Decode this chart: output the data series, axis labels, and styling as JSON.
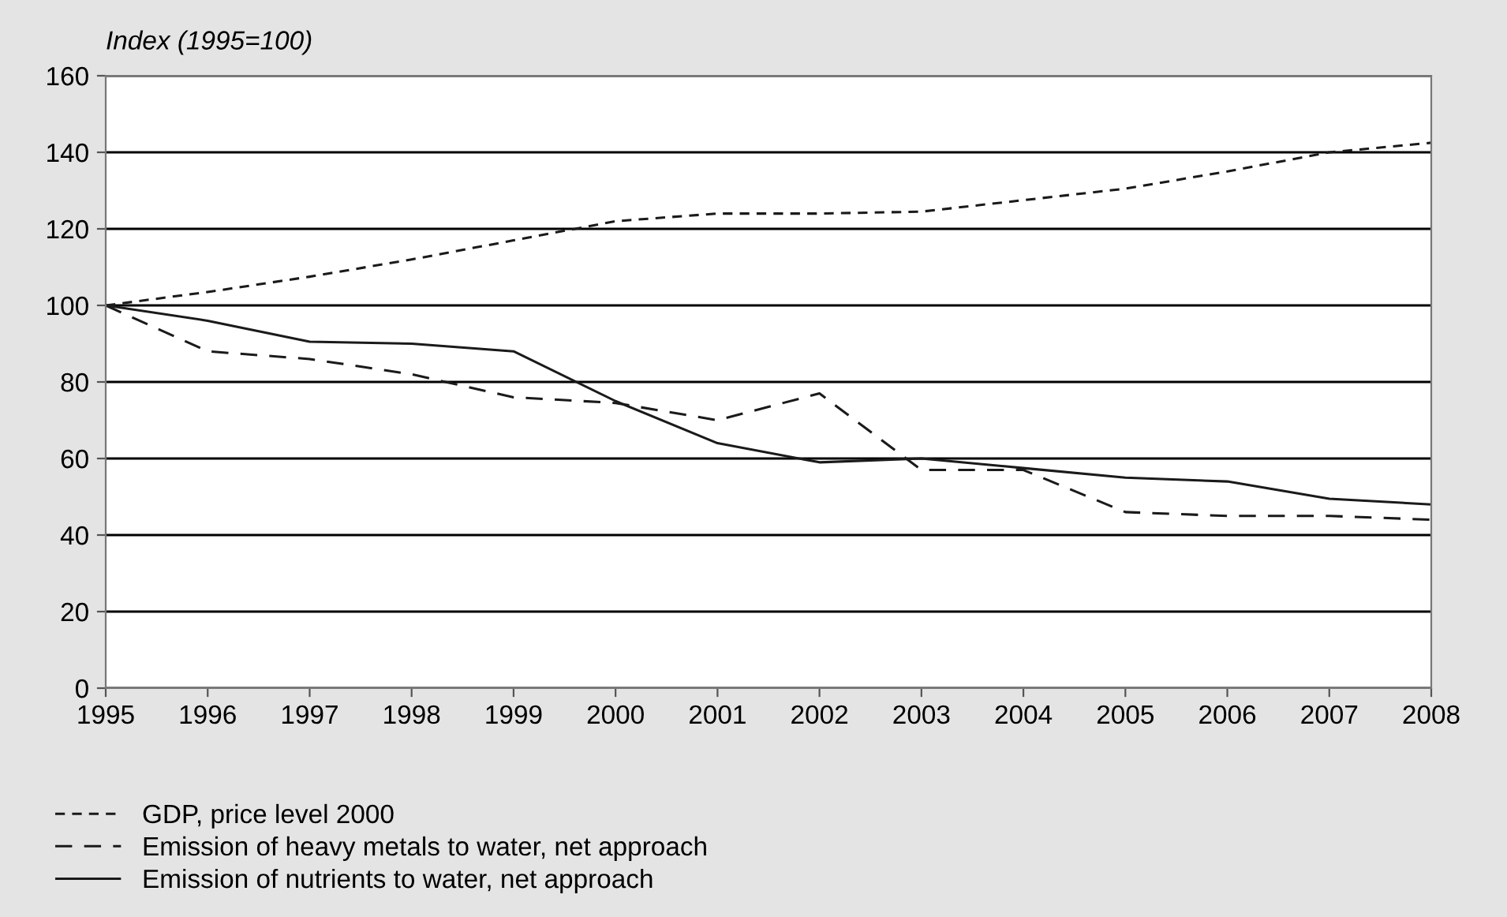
{
  "chart_data": {
    "type": "line",
    "ylabel": "Index (1995=100)",
    "x": [
      1995,
      1996,
      1997,
      1998,
      1999,
      2000,
      2001,
      2002,
      2003,
      2004,
      2005,
      2006,
      2007,
      2008
    ],
    "xlim": [
      1995,
      2008
    ],
    "xticks": [
      1995,
      1996,
      1997,
      1998,
      1999,
      2000,
      2001,
      2002,
      2003,
      2004,
      2005,
      2006,
      2007,
      2008
    ],
    "ylim": [
      0,
      160
    ],
    "yticks": [
      0,
      20,
      40,
      60,
      80,
      100,
      120,
      140,
      160
    ],
    "grid": "y",
    "legend": "bottom left",
    "series": [
      {
        "name": "GDP, price level 2000",
        "color": "#1a1a1a",
        "line_style": "dotted",
        "values": [
          100,
          103.5,
          107.5,
          112,
          117,
          122,
          124,
          124,
          124.5,
          127.5,
          130.5,
          135,
          140,
          142.5
        ]
      },
      {
        "name": "Emission of heavy metals to water, net approach",
        "color": "#1a1a1a",
        "line_style": "dashed",
        "values": [
          100,
          88,
          86,
          82,
          76,
          74.5,
          70,
          77,
          57,
          57,
          46,
          45,
          45,
          44
        ]
      },
      {
        "name": "Emission of nutrients to water, net approach",
        "color": "#1a1a1a",
        "line_style": "solid",
        "values": [
          100,
          96,
          90.5,
          90,
          88,
          75,
          64,
          59,
          60,
          57.5,
          55,
          54,
          49.5,
          48
        ]
      }
    ]
  }
}
